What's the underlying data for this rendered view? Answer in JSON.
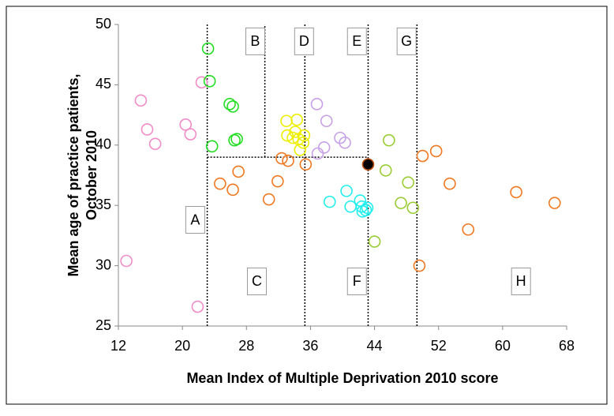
{
  "chart_data": {
    "type": "scatter",
    "xlabel": "Mean Index of Multiple Deprivation 2010 score",
    "ylabel": [
      "Mean age of practice patients,",
      "October 2010"
    ],
    "xlim": [
      12,
      68
    ],
    "xticks": [
      12,
      20,
      28,
      36,
      44,
      52,
      60,
      68
    ],
    "ylim": [
      25,
      50
    ],
    "yticks": [
      25,
      30,
      35,
      40,
      45,
      50
    ],
    "series": [
      {
        "color": "#f08cc8",
        "x": [
          13,
          14.8,
          15.6,
          16.6,
          20.4,
          21.0,
          22.4,
          21.9
        ],
        "y": [
          30.4,
          43.7,
          41.3,
          40.1,
          41.7,
          40.9,
          45.2,
          26.6
        ]
      },
      {
        "color": "#22dd22",
        "x": [
          23.2,
          23.4,
          23.7,
          25.9,
          26.3,
          26.5,
          26.8
        ],
        "y": [
          48,
          45.3,
          39.9,
          43.4,
          43.2,
          40.4,
          40.5
        ]
      },
      {
        "color": "#eeee00",
        "x": [
          33,
          34.3,
          33.1,
          33.8,
          34.5,
          35.1,
          34.1,
          34.7,
          35.2
        ],
        "y": [
          42,
          42.1,
          40.8,
          40.6,
          40.5,
          40.2,
          41.1,
          39.6,
          40.8
        ]
      },
      {
        "color": "#c8a0e8",
        "x": [
          36.8,
          38.0,
          36.9,
          37.7,
          39.7,
          40.3
        ],
        "y": [
          43.4,
          42.0,
          39.3,
          39.8,
          40.6,
          40.2
        ]
      },
      {
        "color": "#f07820",
        "x": [
          24.7,
          26.3,
          27.0,
          30.8,
          31.9,
          32.4,
          33.2,
          35.4,
          50.0,
          51.7,
          53.4,
          55.7,
          61.7,
          66.5,
          49.6
        ],
        "y": [
          36.8,
          36.3,
          37.8,
          35.5,
          37.0,
          38.9,
          38.7,
          38.4,
          39.1,
          39.5,
          36.8,
          33.0,
          36.1,
          35.2,
          30.0
        ]
      },
      {
        "color": "#99cc33",
        "x": [
          45.8,
          45.4,
          48.2,
          47.3,
          48.8,
          44.0
        ],
        "y": [
          40.4,
          37.9,
          36.9,
          35.2,
          34.8,
          32.0
        ]
      },
      {
        "color": "#22eeee",
        "x": [
          40.5,
          38.4,
          41.0,
          42.2,
          42.4,
          42.5,
          42.9,
          43.1
        ],
        "y": [
          36.2,
          35.3,
          34.9,
          35.4,
          34.9,
          34.5,
          34.6,
          34.8
        ]
      },
      {
        "color": "#000000",
        "filled": true,
        "x": [
          43.2
        ],
        "y": [
          38.4
        ]
      }
    ],
    "ref_lines": [
      {
        "x": 23.1
      },
      {
        "x": 30.3,
        "y_range": [
          39,
          50
        ]
      },
      {
        "x": 35.3
      },
      {
        "x": 43.2
      },
      {
        "x": 49.3
      },
      {
        "y": 39,
        "x_range": [
          23.1,
          43.2
        ]
      }
    ],
    "annotations": [
      {
        "text": "A",
        "x": 21.6,
        "y": 33.8
      },
      {
        "text": "B",
        "x": 29.1,
        "y": 48.6
      },
      {
        "text": "C",
        "x": 29.3,
        "y": 28.7
      },
      {
        "text": "D",
        "x": 35.2,
        "y": 48.6
      },
      {
        "text": "E",
        "x": 41.8,
        "y": 48.6
      },
      {
        "text": "F",
        "x": 41.8,
        "y": 28.7
      },
      {
        "text": "G",
        "x": 48,
        "y": 48.6
      },
      {
        "text": "H",
        "x": 62.3,
        "y": 28.7
      }
    ]
  }
}
